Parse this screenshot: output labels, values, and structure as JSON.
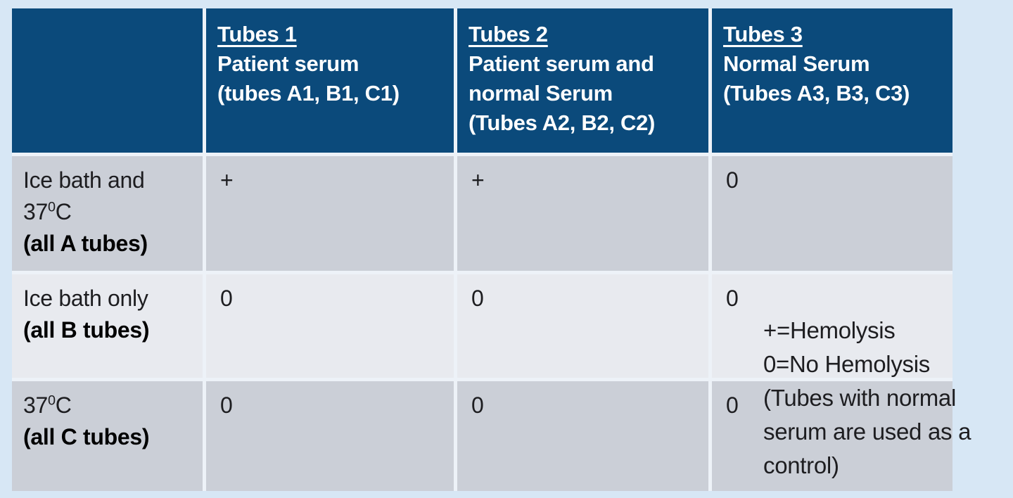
{
  "colors": {
    "page_bg": "#d7e7f5",
    "header_bg": "#0b4a7b",
    "header_text": "#ffffff",
    "row_dark": "#cbcfd7",
    "row_light": "#e8eaef",
    "separator": "#edf2f8",
    "body_text": "#1d1d20"
  },
  "table": {
    "header_columns": [
      {
        "title": "",
        "description": "",
        "tube_ids": ""
      },
      {
        "title": "Tubes 1",
        "description": "Patient serum",
        "tube_ids": "(tubes A1, B1, C1)"
      },
      {
        "title": "Tubes 2",
        "description": "Patient serum and normal Serum",
        "tube_ids": "(Tubes A2, B2, C2)"
      },
      {
        "title": "Tubes 3",
        "description": "Normal Serum",
        "tube_ids": "(Tubes A3, B3, C3)"
      }
    ],
    "rows": [
      {
        "label": "Ice bath and 37",
        "label_sup": "0",
        "label_after": "C",
        "label_bold": "(all A tubes)",
        "values": [
          "+",
          "+",
          "0"
        ]
      },
      {
        "label": "Ice bath only",
        "label_sup": "",
        "label_after": "",
        "label_bold": "(all B tubes)",
        "values": [
          "0",
          "0",
          "0"
        ]
      },
      {
        "label": "37",
        "label_sup": "0",
        "label_after": "C",
        "label_bold": "(all C tubes)",
        "values": [
          "0",
          "0",
          "0"
        ]
      }
    ]
  },
  "legend": {
    "lines": [
      "+=Hemolysis",
      "0=No Hemolysis",
      "(Tubes with normal",
      "serum are used as a",
      "control)"
    ]
  }
}
